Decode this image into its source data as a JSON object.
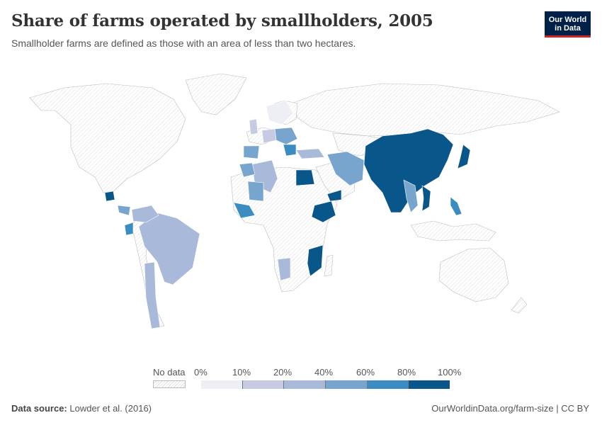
{
  "header": {
    "title": "Share of farms operated by smallholders, 2005",
    "subtitle": "Smallholder farms are defined as those with an area of less than two hectares.",
    "logo_line1": "Our World",
    "logo_line2": "in Data"
  },
  "legend": {
    "no_data_label": "No data",
    "ticks": [
      "0%",
      "10%",
      "20%",
      "40%",
      "60%",
      "80%",
      "100%"
    ],
    "bin_colors": [
      "#eeeef5",
      "#c6cae2",
      "#a8b9da",
      "#78a5cd",
      "#3a8cc1",
      "#08568a"
    ]
  },
  "footer": {
    "source_label": "Data source:",
    "source_value": "Lowder et al. (2016)",
    "url": "OurWorldinData.org/farm-size | CC BY"
  },
  "colors": {
    "no_data_fill": "#ffffff",
    "no_data_hatch": "#dddddd",
    "border": "#bbbbbb",
    "bin_0_10": "#eeeef5",
    "bin_10_20": "#c6cae2",
    "bin_20_40": "#a8b9da",
    "bin_40_60": "#78a5cd",
    "bin_60_80": "#3a8cc1",
    "bin_80_100": "#08568a"
  }
}
